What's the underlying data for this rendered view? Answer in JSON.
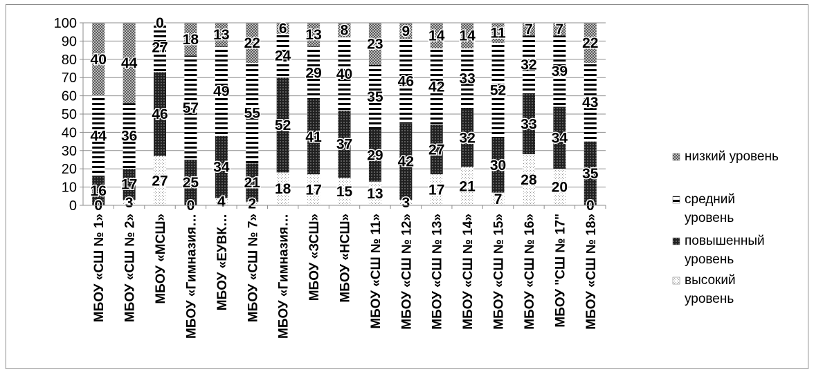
{
  "chart_data": {
    "type": "bar",
    "stacked": true,
    "categories": [
      "МБОУ «СШ № 1»",
      "МБОУ «СШ № 2»",
      "МБОУ «МСШ»",
      "МБОУ «Гимназия…",
      "МБОУ «ЕУВК…",
      "МБОУ «СШ № 7»",
      "МБОУ «Гимназия…",
      "МБОУ «ЗСШ»",
      "МБОУ «НСШ»",
      "МБОУ «СШ № 11»",
      "МБОУ «СШ № 12»",
      "МБОУ «СШ № 13»",
      "МБОУ «СШ № 14»",
      "МБОУ «СШ № 15»",
      "МБОУ «СШ № 16»",
      "МБОУ \"СШ № 17\"",
      "МБОУ «СШ № 18»"
    ],
    "series": [
      {
        "name": "высокий уровень",
        "values": [
          0,
          3,
          27,
          0,
          4,
          2,
          18,
          17,
          15,
          13,
          3,
          17,
          21,
          7,
          28,
          20,
          0
        ]
      },
      {
        "name": "повышенный уровень",
        "values": [
          16,
          17,
          46,
          25,
          34,
          21,
          52,
          41,
          37,
          29,
          42,
          27,
          32,
          30,
          33,
          34,
          35
        ]
      },
      {
        "name": "средний уровень",
        "values": [
          44,
          36,
          27,
          57,
          49,
          55,
          24,
          29,
          40,
          35,
          46,
          42,
          33,
          52,
          32,
          39,
          43
        ]
      },
      {
        "name": "низкий уровень",
        "values": [
          40,
          44,
          0,
          18,
          13,
          22,
          6,
          13,
          8,
          23,
          9,
          14,
          14,
          11,
          7,
          7,
          22
        ]
      }
    ],
    "legend_order": [
      "низкий уровень",
      "средний уровень",
      "повышенный уровень",
      "высокий уровень"
    ],
    "legend_position": "right",
    "ylim": [
      0,
      100
    ],
    "yticks": [
      0,
      10,
      20,
      30,
      40,
      50,
      60,
      70,
      80,
      90,
      100
    ],
    "grid": true,
    "colors": {
      "axis": "#8c8c8c",
      "grid": "#8c8c8c",
      "low": "#a8a8a8",
      "mid": "#ffffff",
      "high": "#303030",
      "top": "#e0e0e0"
    }
  }
}
